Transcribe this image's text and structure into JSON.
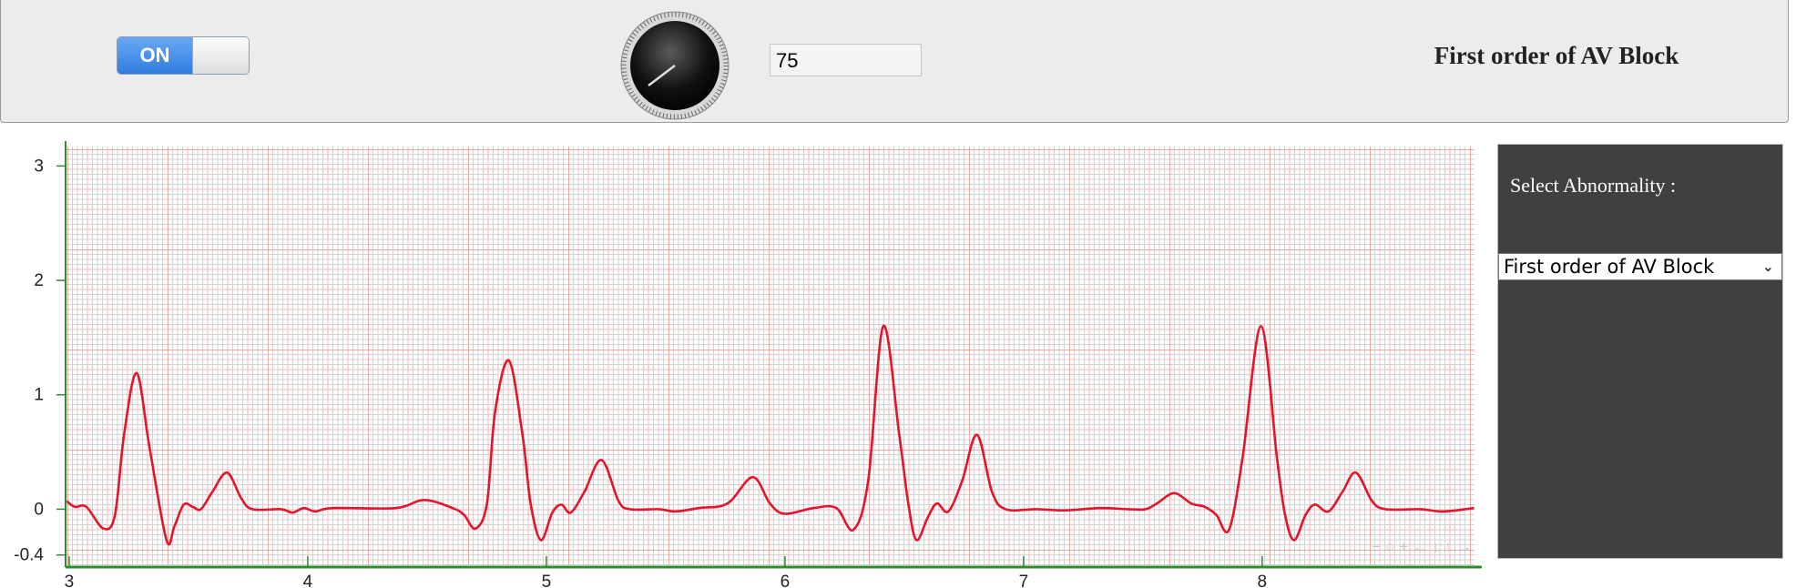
{
  "ui": {
    "toggle": "ON",
    "knob_input": "75",
    "title": "First order of AV Block",
    "select_label": "Select Abnormality :",
    "select_value": "First order of AV Block",
    "plot_controls": "− ○ + ← ↓ ↑ →"
  },
  "chart_data": {
    "type": "line",
    "x": [
      2.99,
      3.024,
      3.072,
      3.144,
      3.192,
      3.23,
      3.283,
      3.336,
      3.408,
      3.441,
      3.48,
      3.518,
      3.552,
      3.6,
      3.662,
      3.72,
      3.768,
      3.888,
      3.936,
      3.984,
      4.032,
      4.104,
      4.368,
      4.488,
      4.607,
      4.655,
      4.703,
      4.751,
      4.785,
      4.843,
      4.9,
      4.934,
      4.977,
      5.025,
      5.063,
      5.102,
      5.159,
      5.231,
      5.303,
      5.351,
      5.471,
      5.543,
      5.639,
      5.759,
      5.865,
      5.937,
      5.999,
      6.119,
      6.215,
      6.287,
      6.349,
      6.412,
      6.479,
      6.517,
      6.551,
      6.599,
      6.637,
      6.685,
      6.743,
      6.805,
      6.868,
      6.925,
      7.055,
      7.175,
      7.319,
      7.439,
      7.511,
      7.559,
      7.631,
      7.703,
      7.76,
      7.808,
      7.861,
      7.918,
      7.995,
      8.062,
      8.096,
      8.134,
      8.182,
      8.221,
      8.278,
      8.336,
      8.393,
      8.461,
      8.518,
      8.662,
      8.758,
      8.888
    ],
    "series": [
      {
        "color": "#e3142c",
        "values": [
          0.07,
          0.02,
          0.02,
          -0.17,
          -0.05,
          0.65,
          1.19,
          0.55,
          -0.27,
          -0.15,
          0.04,
          0.02,
          0,
          0.15,
          0.32,
          0.1,
          0,
          0,
          -0.03,
          0.01,
          -0.02,
          0.01,
          0.01,
          0.08,
          0.01,
          -0.05,
          -0.17,
          0.05,
          0.85,
          1.3,
          0.65,
          0.05,
          -0.27,
          -0.03,
          0.04,
          -0.03,
          0.15,
          0.43,
          0.07,
          0,
          0,
          -0.02,
          0.01,
          0.05,
          0.28,
          0.05,
          -0.04,
          0.01,
          0.01,
          -0.18,
          0.25,
          1.6,
          0.65,
          0.05,
          -0.27,
          -0.07,
          0.05,
          -0.02,
          0.25,
          0.65,
          0.15,
          0,
          0,
          -0.01,
          0.01,
          0,
          0,
          0.05,
          0.14,
          0.05,
          0.02,
          -0.05,
          -0.18,
          0.45,
          1.6,
          0.45,
          -0.05,
          -0.27,
          -0.05,
          0.04,
          -0.02,
          0.15,
          0.32,
          0.07,
          0,
          0,
          -0.02,
          0.01
        ]
      }
    ],
    "xlim": [
      2.985,
      8.89
    ],
    "ylim": [
      -0.49,
      3.17
    ],
    "xticks": [
      3,
      4,
      5,
      6,
      7,
      8
    ],
    "yticks": [
      3,
      2,
      1,
      0,
      -0.4
    ]
  }
}
